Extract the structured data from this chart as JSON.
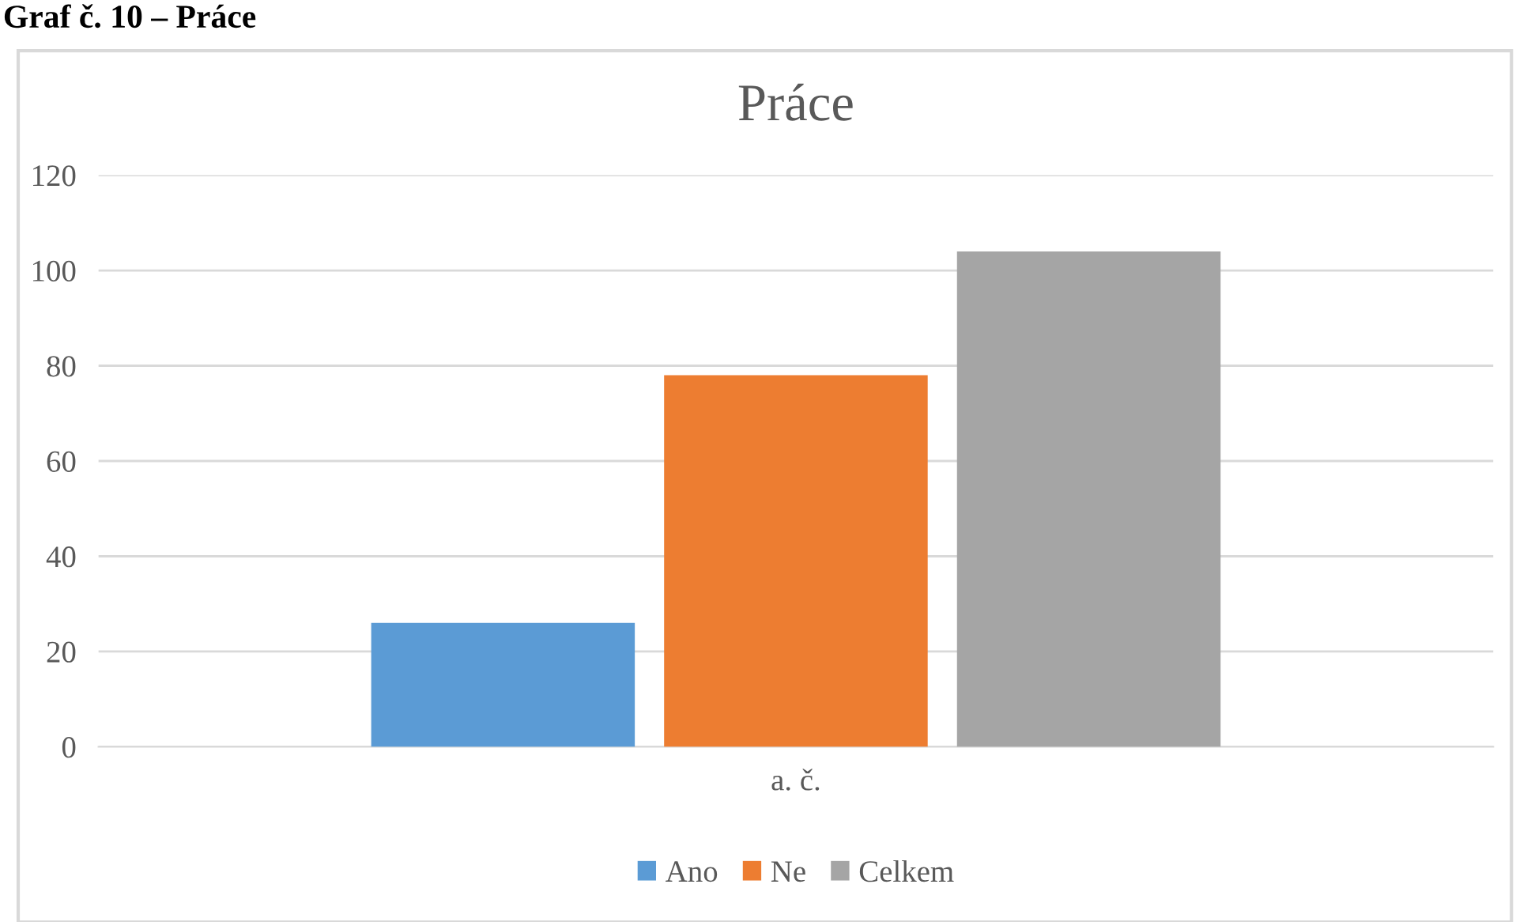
{
  "chart_data": {
    "type": "bar",
    "title": "Práce",
    "categories": [
      "a. č."
    ],
    "series": [
      {
        "name": "Ano",
        "color": "#5b9bd5",
        "values": [
          26
        ]
      },
      {
        "name": "Ne",
        "color": "#ed7d31",
        "values": [
          78
        ]
      },
      {
        "name": "Celkem",
        "color": "#a5a5a5",
        "values": [
          104
        ]
      }
    ],
    "ylim": [
      0,
      120
    ],
    "yticks": [
      0,
      20,
      40,
      60,
      80,
      100,
      120
    ],
    "grid": "y",
    "legend": "bottom",
    "annotations": [
      "Graf č. 10 – Práce"
    ]
  }
}
